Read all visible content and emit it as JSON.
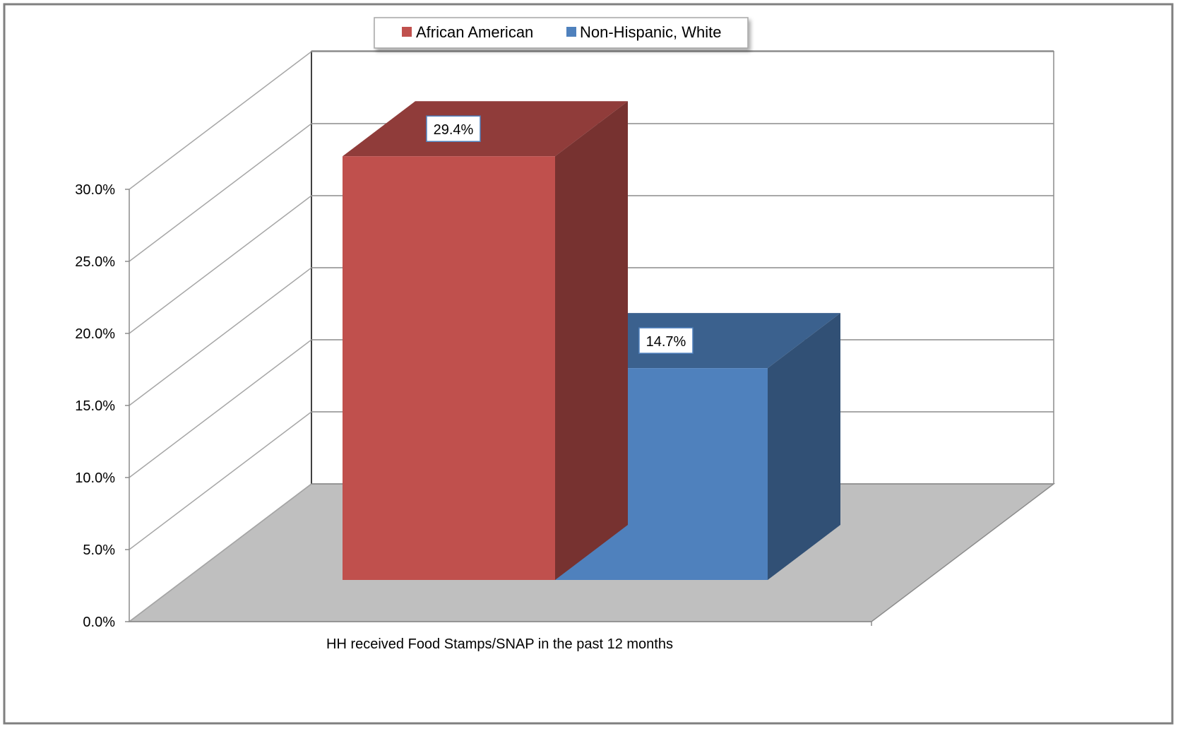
{
  "chart_data": {
    "type": "bar",
    "categories": [
      "HH received Food Stamps/SNAP in the past 12 months"
    ],
    "series": [
      {
        "name": "African American",
        "values": [
          29.4
        ],
        "label": "29.4%",
        "color": "#C0504D"
      },
      {
        "name": "Non-Hispanic, White",
        "values": [
          14.7
        ],
        "label": "14.7%",
        "color": "#4F81BD"
      }
    ],
    "ylim": [
      0,
      30
    ],
    "y_ticks": [
      {
        "value": 0,
        "label": "0.0%"
      },
      {
        "value": 5,
        "label": "5.0%"
      },
      {
        "value": 10,
        "label": "10.0%"
      },
      {
        "value": 15,
        "label": "15.0%"
      },
      {
        "value": 20,
        "label": "20.0%"
      },
      {
        "value": 25,
        "label": "25.0%"
      },
      {
        "value": 30,
        "label": "30.0%"
      }
    ],
    "legend_position": "top",
    "grid": true,
    "style": "3d-column"
  }
}
